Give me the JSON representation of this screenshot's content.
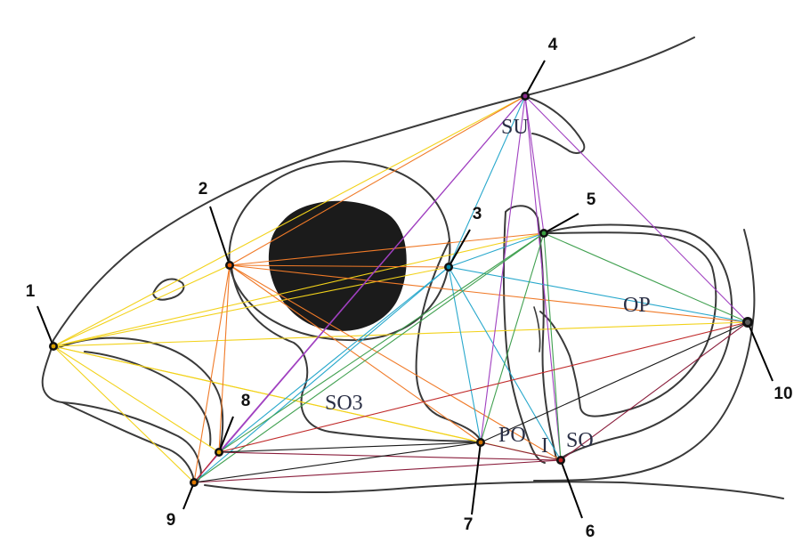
{
  "landmarks": [
    {
      "id": 1,
      "label": "1",
      "color": "#d9a000"
    },
    {
      "id": 2,
      "label": "2",
      "color": "#e85a00"
    },
    {
      "id": 3,
      "label": "3",
      "color": "#0088aa"
    },
    {
      "id": 4,
      "label": "4",
      "color": "#8b2a8b"
    },
    {
      "id": 5,
      "label": "5",
      "color": "#3aa040"
    },
    {
      "id": 6,
      "label": "6",
      "color": "#c02020"
    },
    {
      "id": 7,
      "label": "7",
      "color": "#d07000"
    },
    {
      "id": 8,
      "label": "8",
      "color": "#e0a000"
    },
    {
      "id": 9,
      "label": "9",
      "color": "#e07800"
    },
    {
      "id": 10,
      "label": "10",
      "color": "#5a5a5a"
    }
  ],
  "regions": {
    "su": "SU",
    "op": "OP",
    "so3": "SO3",
    "po": "PO",
    "i": "I",
    "so": "SO"
  },
  "line_colors": {
    "from_1": "#f2d21a",
    "from_2": "#f07a28",
    "from_3": "#28a8cc",
    "from_4": "#a040c0",
    "from_5": "#40a050",
    "from_6": "#8a1e3c",
    "from_7": "#1a1a1a",
    "from_8": "#c02a2a"
  }
}
